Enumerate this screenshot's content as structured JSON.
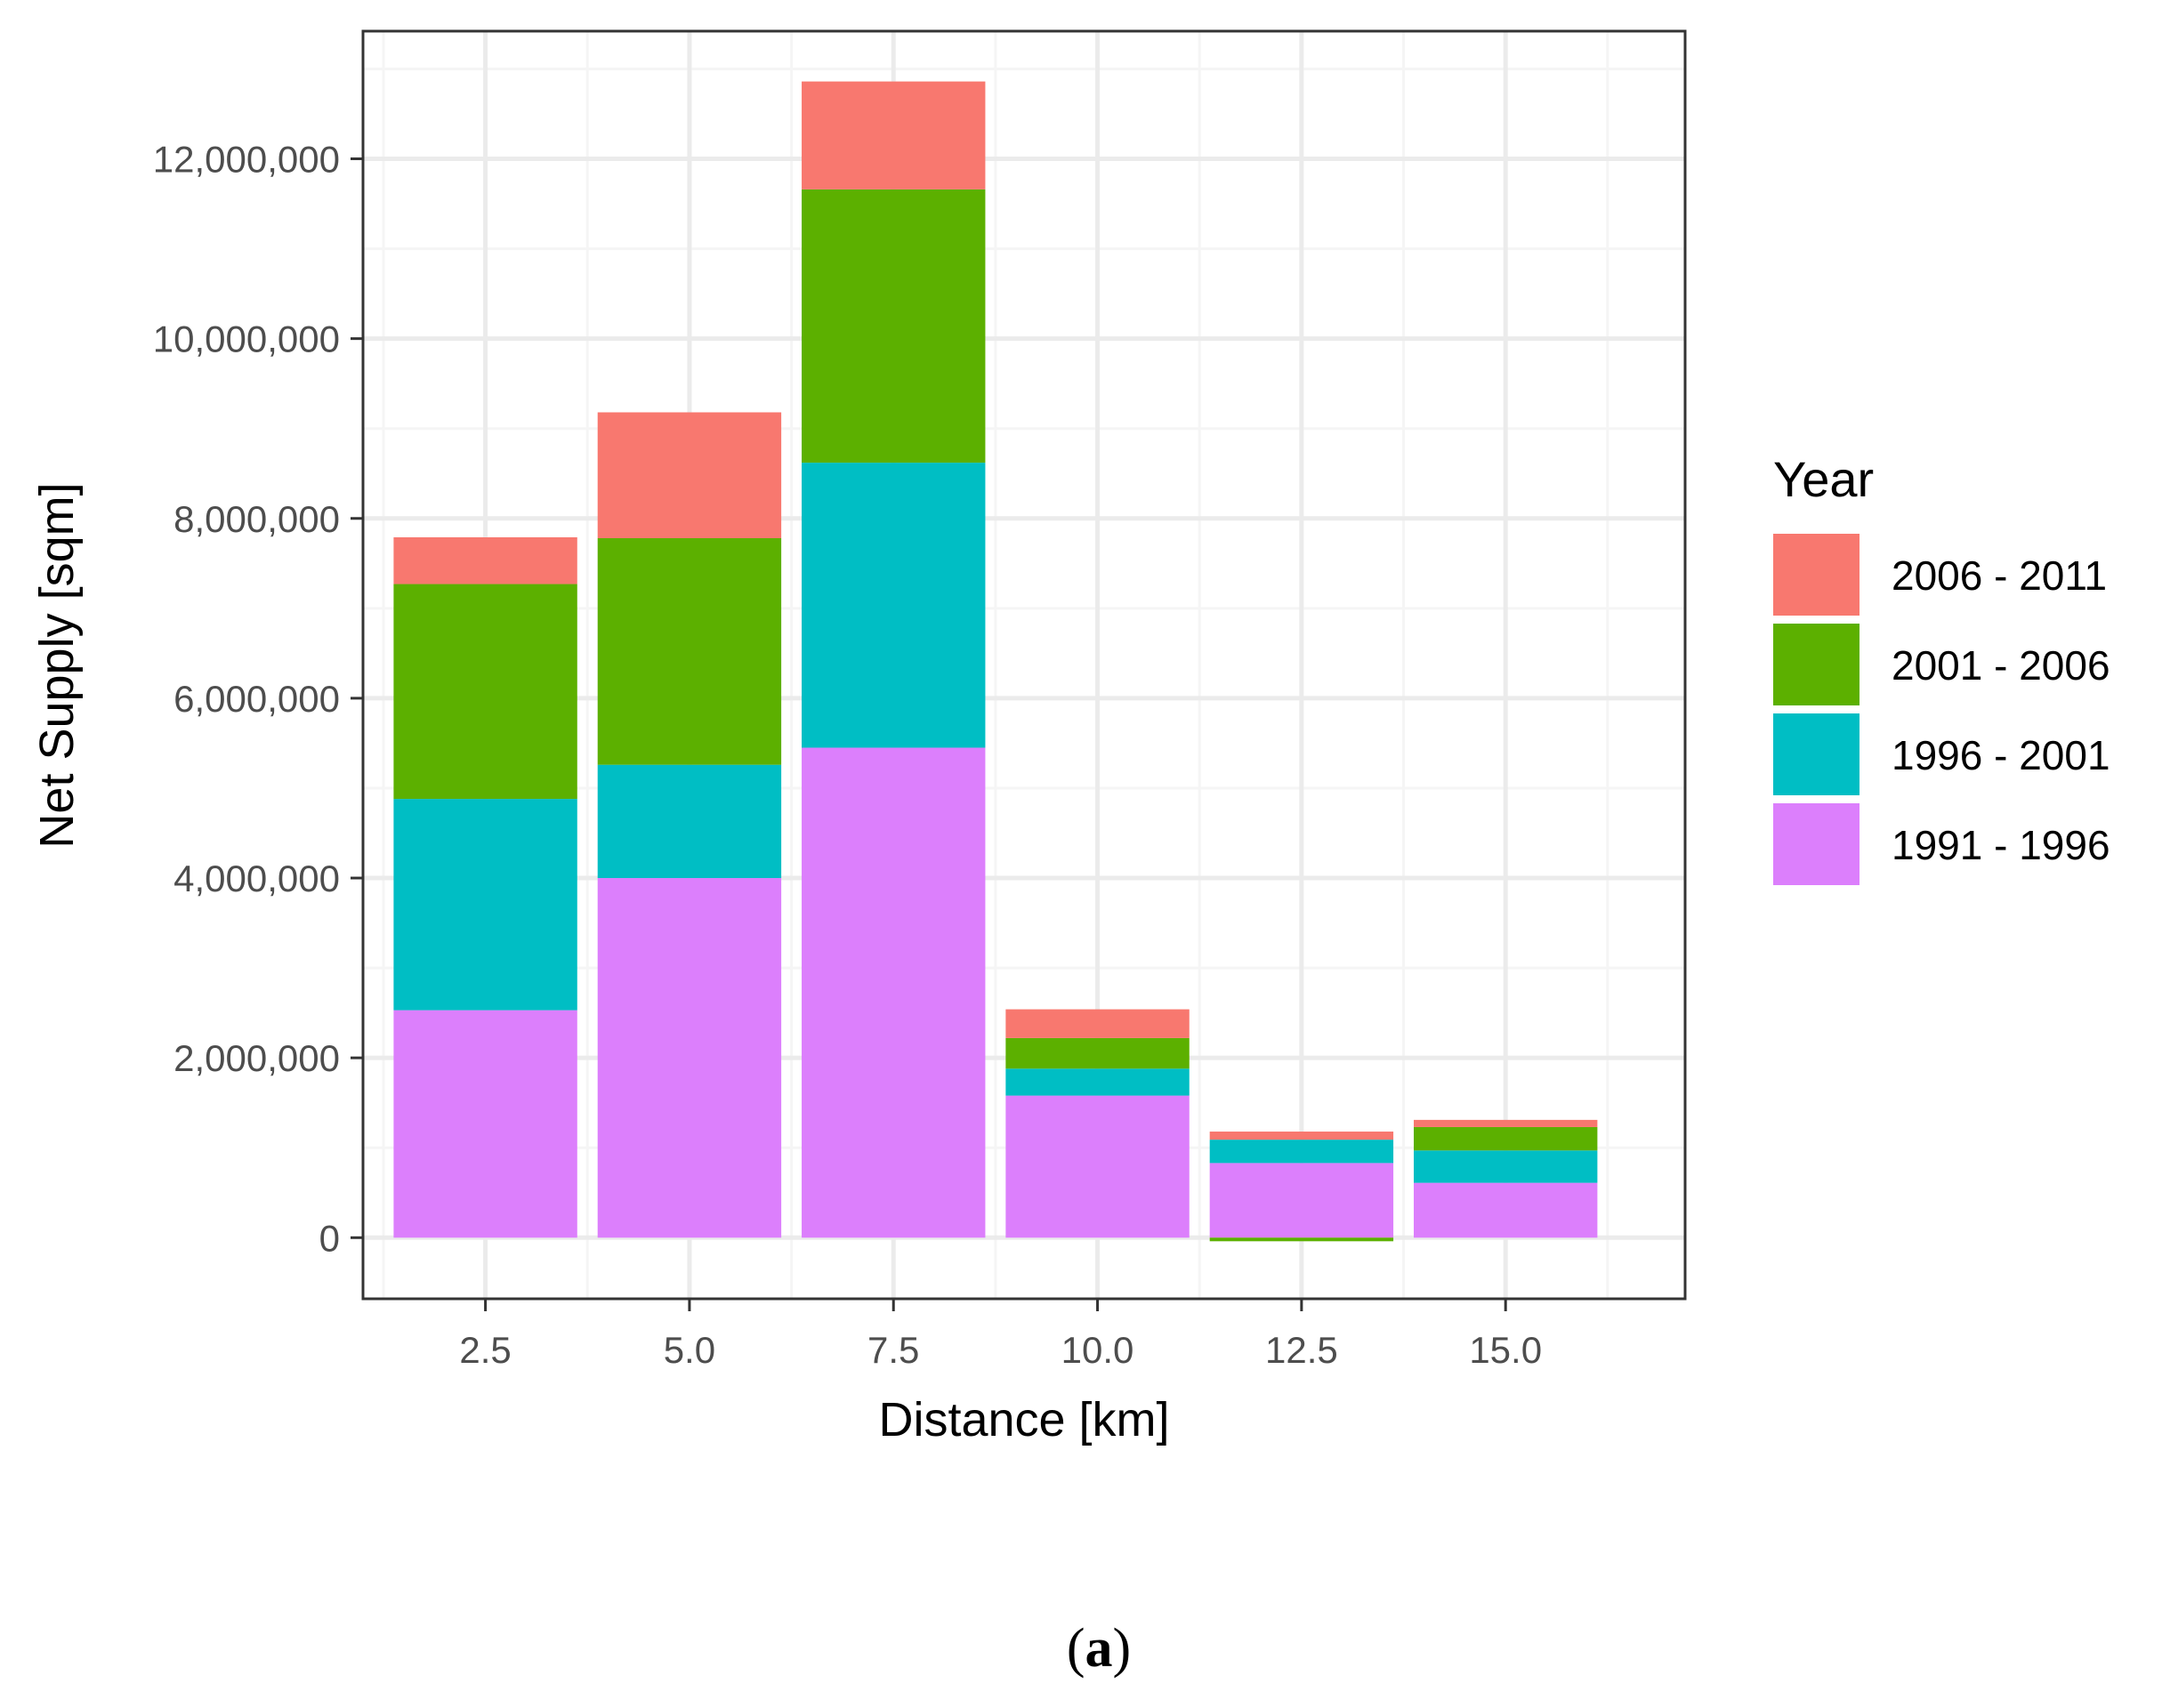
{
  "chart_data": {
    "type": "bar",
    "stacked": true,
    "title": "",
    "xlabel": "Distance [km]",
    "ylabel": "Net Supply [sqm]",
    "xlim": [
      1.0,
      17.2
    ],
    "ylim": [
      -680000,
      13420000
    ],
    "x": [
      2.5,
      5.0,
      7.5,
      10.0,
      12.5,
      15.0
    ],
    "x_ticks": [
      2.5,
      5.0,
      7.5,
      10.0,
      12.5,
      15.0
    ],
    "x_tick_labels": [
      "2.5",
      "5.0",
      "7.5",
      "10.0",
      "12.5",
      "15.0"
    ],
    "x_minor_gridlines": [
      1.25,
      3.75,
      6.25,
      8.75,
      11.25,
      13.75,
      16.25
    ],
    "y_ticks": [
      0,
      2000000,
      4000000,
      6000000,
      8000000,
      10000000,
      12000000
    ],
    "y_tick_labels": [
      "0",
      "2,000,000",
      "4,000,000",
      "6,000,000",
      "8,000,000",
      "10,000,000",
      "12,000,000"
    ],
    "y_minor_gridlines": [
      1000000,
      3000000,
      5000000,
      7000000,
      9000000,
      11000000,
      13000000
    ],
    "bar_width_data_units": 2.25,
    "grid": true,
    "series": [
      {
        "name": "1991 - 1996",
        "color": "#dc7ffc",
        "values": [
          2530000,
          4000000,
          5450000,
          1580000,
          830000,
          610000
        ]
      },
      {
        "name": "1996 - 2001",
        "color": "#00bec4",
        "values": [
          2350000,
          1260000,
          3170000,
          300000,
          260000,
          360000
        ]
      },
      {
        "name": "2001 - 2006",
        "color": "#5cb000",
        "values": [
          2390000,
          2520000,
          3040000,
          340000,
          -40000,
          260000
        ]
      },
      {
        "name": "2006 - 2011",
        "color": "#f8786f",
        "values": [
          520000,
          1400000,
          1200000,
          320000,
          90000,
          80000
        ]
      }
    ],
    "legend": {
      "title": "Year",
      "placement": "right",
      "order": [
        "2006 - 2011",
        "2001 - 2006",
        "1996 - 2001",
        "1991 - 1996"
      ]
    }
  },
  "caption": {
    "open": "(",
    "letter": "a",
    "close": ")"
  },
  "colors": {
    "panel_border": "#333333",
    "grid_major": "#ebebeb",
    "grid_minor": "#f5f5f5",
    "tick_text": "#4d4d4d"
  }
}
